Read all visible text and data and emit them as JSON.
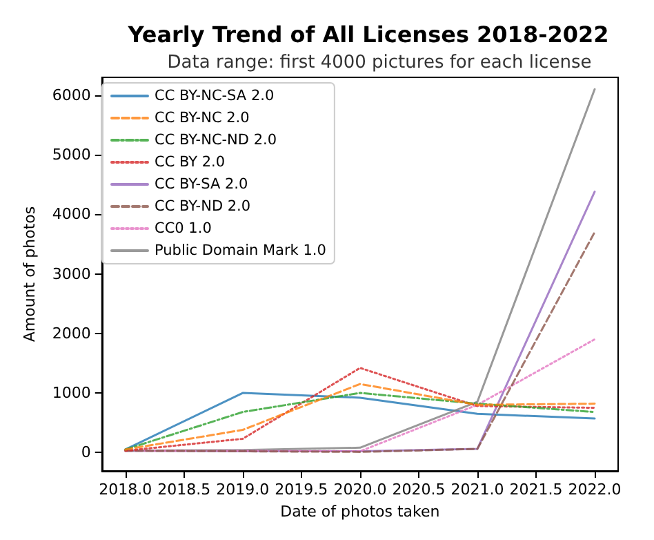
{
  "chart_data": {
    "type": "line",
    "title": "Yearly Trend of All Licenses 2018-2022",
    "subtitle": "Data range: first 4000 pictures for each license",
    "xlabel": "Date of photos taken",
    "ylabel": "Amount of photos",
    "x": [
      2018,
      2019,
      2020,
      2021,
      2022
    ],
    "series": [
      {
        "name": "CC BY-NC-SA 2.0",
        "color": "#1f77b4",
        "line_style": "solid",
        "values": [
          50,
          1000,
          920,
          650,
          570
        ]
      },
      {
        "name": "CC BY-NC 2.0",
        "color": "#ff7f0e",
        "line_style": "dashed",
        "values": [
          50,
          380,
          1150,
          800,
          820
        ]
      },
      {
        "name": "CC BY-NC-ND 2.0",
        "color": "#2ca02c",
        "line_style": "dashdot",
        "values": [
          50,
          680,
          1000,
          820,
          680
        ]
      },
      {
        "name": "CC BY 2.0",
        "color": "#d62728",
        "line_style": "dotted",
        "values": [
          30,
          230,
          1420,
          780,
          750
        ]
      },
      {
        "name": "CC BY-SA 2.0",
        "color": "#9467bd",
        "line_style": "solid",
        "values": [
          30,
          20,
          20,
          60,
          4380
        ]
      },
      {
        "name": "CC BY-ND 2.0",
        "color": "#8c564b",
        "line_style": "dashed",
        "values": [
          30,
          20,
          10,
          60,
          3700
        ]
      },
      {
        "name": "CC0 1.0",
        "color": "#e377c2",
        "line_style": "dotted",
        "values": [
          30,
          30,
          20,
          800,
          1900
        ]
      },
      {
        "name": "Public Domain Mark 1.0",
        "color": "#7f7f7f",
        "line_style": "solid",
        "values": [
          30,
          40,
          80,
          850,
          6100
        ]
      }
    ],
    "xlim": [
      2017.8,
      2022.2
    ],
    "xticks": [
      {
        "value": 2018,
        "label": "2018.0"
      },
      {
        "value": 2018.5,
        "label": "2018.5"
      },
      {
        "value": 2019,
        "label": "2019.0"
      },
      {
        "value": 2019.5,
        "label": "2019.5"
      },
      {
        "value": 2020,
        "label": "2020.0"
      },
      {
        "value": 2020.5,
        "label": "2020.5"
      },
      {
        "value": 2021,
        "label": "2021.0"
      },
      {
        "value": 2021.5,
        "label": "2021.5"
      },
      {
        "value": 2022,
        "label": "2022.0"
      }
    ],
    "ylim": [
      -310,
      6300
    ],
    "yticks": [
      0,
      1000,
      2000,
      3000,
      4000,
      5000,
      6000
    ],
    "grid": false,
    "legend": "top left",
    "marker": "none"
  }
}
